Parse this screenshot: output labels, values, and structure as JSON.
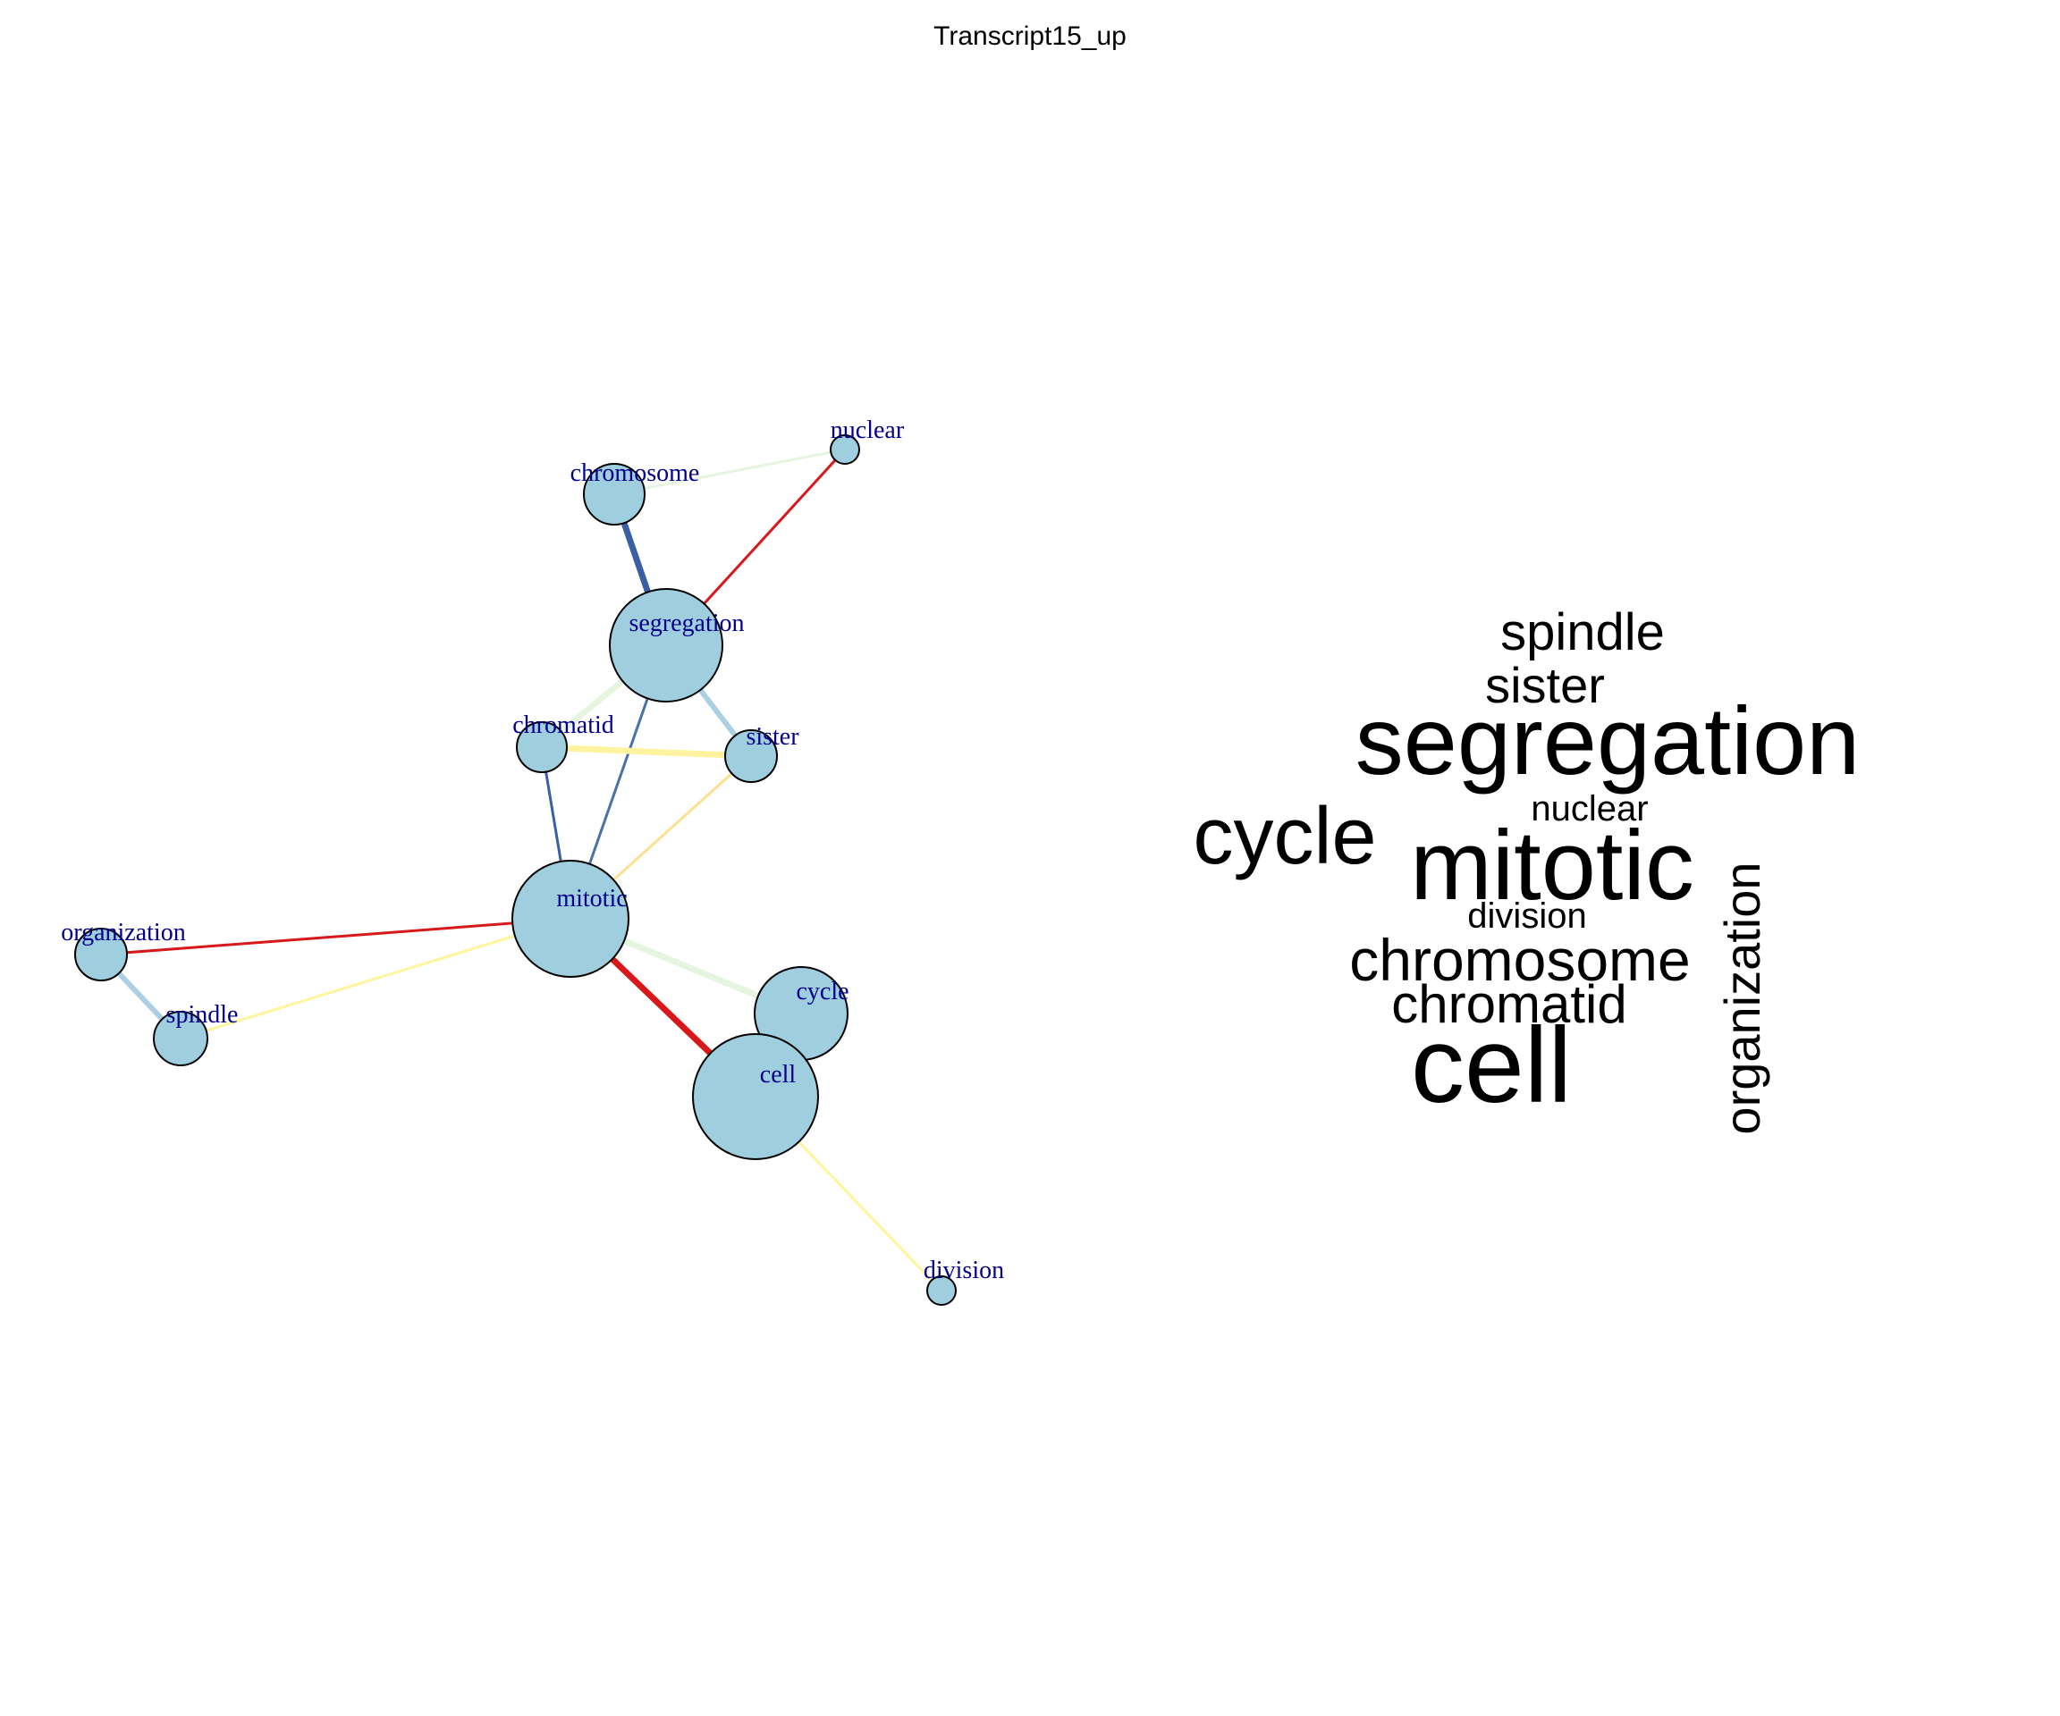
{
  "title": "Transcript15_up",
  "node_fill": "#9fcfdf",
  "label_color": "#00008b",
  "nodes": [
    {
      "id": "nuclear",
      "label": "nuclear"
    },
    {
      "id": "chromosome",
      "label": "chromosome"
    },
    {
      "id": "segregation",
      "label": "segregation"
    },
    {
      "id": "chromatid",
      "label": "chromatid"
    },
    {
      "id": "sister",
      "label": "sister"
    },
    {
      "id": "mitotic",
      "label": "mitotic"
    },
    {
      "id": "organization",
      "label": "organization"
    },
    {
      "id": "spindle",
      "label": "spindle"
    },
    {
      "id": "cycle",
      "label": "cycle"
    },
    {
      "id": "cell",
      "label": "cell"
    },
    {
      "id": "division",
      "label": "division"
    }
  ],
  "edges": [
    {
      "source": "chromosome",
      "target": "nuclear",
      "color": "#e5f5e0"
    },
    {
      "source": "segregation",
      "target": "nuclear",
      "color": "#d7191c"
    },
    {
      "source": "chromosome",
      "target": "segregation",
      "color": "#3a5fa3"
    },
    {
      "source": "segregation",
      "target": "chromatid",
      "color": "#e5f5e0"
    },
    {
      "source": "segregation",
      "target": "sister",
      "color": "#abd0e4"
    },
    {
      "source": "segregation",
      "target": "mitotic",
      "color": "#4a72a8"
    },
    {
      "source": "chromatid",
      "target": "sister",
      "color": "#fff3a0"
    },
    {
      "source": "chromatid",
      "target": "mitotic",
      "color": "#3a5fa3"
    },
    {
      "source": "sister",
      "target": "mitotic",
      "color": "#fee090"
    },
    {
      "source": "mitotic",
      "target": "organization",
      "color": "#d7191c"
    },
    {
      "source": "mitotic",
      "target": "spindle",
      "color": "#fff59d"
    },
    {
      "source": "mitotic",
      "target": "cycle",
      "color": "#e5f5e0"
    },
    {
      "source": "mitotic",
      "target": "cell",
      "color": "#d7191c"
    },
    {
      "source": "organization",
      "target": "spindle",
      "color": "#abd0e4"
    },
    {
      "source": "cell",
      "target": "division",
      "color": "#fff59d"
    }
  ],
  "wordcloud": [
    {
      "id": "spindle",
      "text": "spindle"
    },
    {
      "id": "sister",
      "text": "sister"
    },
    {
      "id": "segregation",
      "text": "segregation"
    },
    {
      "id": "nuclear",
      "text": "nuclear"
    },
    {
      "id": "cycle",
      "text": "cycle"
    },
    {
      "id": "mitotic",
      "text": "mitotic"
    },
    {
      "id": "division",
      "text": "division"
    },
    {
      "id": "chromosome",
      "text": "chromosome"
    },
    {
      "id": "chromatid",
      "text": "chromatid"
    },
    {
      "id": "cell",
      "text": "cell"
    },
    {
      "id": "organization",
      "text": "organization"
    }
  ]
}
